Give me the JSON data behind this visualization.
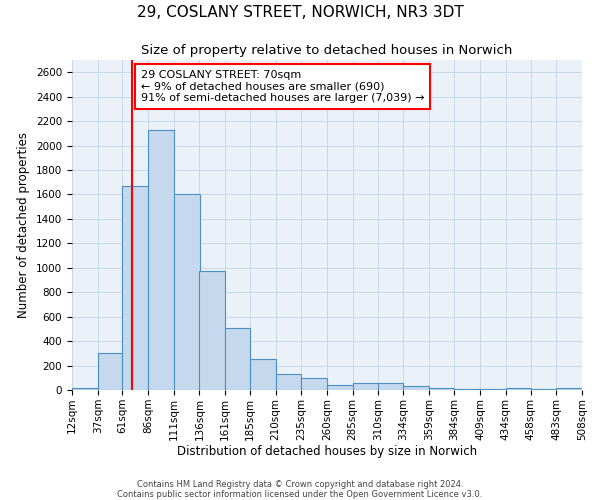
{
  "title": "29, COSLANY STREET, NORWICH, NR3 3DT",
  "subtitle": "Size of property relative to detached houses in Norwich",
  "xlabel": "Distribution of detached houses by size in Norwich",
  "ylabel": "Number of detached properties",
  "bin_edges": [
    12,
    37,
    61,
    86,
    111,
    136,
    161,
    185,
    210,
    235,
    260,
    285,
    310,
    334,
    359,
    384,
    409,
    434,
    458,
    483,
    508
  ],
  "bin_labels": [
    "12sqm",
    "37sqm",
    "61sqm",
    "86sqm",
    "111sqm",
    "136sqm",
    "161sqm",
    "185sqm",
    "210sqm",
    "235sqm",
    "260sqm",
    "285sqm",
    "310sqm",
    "334sqm",
    "359sqm",
    "384sqm",
    "409sqm",
    "434sqm",
    "458sqm",
    "483sqm",
    "508sqm"
  ],
  "bar_heights": [
    20,
    300,
    1670,
    2130,
    1600,
    970,
    510,
    255,
    130,
    100,
    40,
    60,
    55,
    30,
    15,
    10,
    5,
    15,
    5,
    20
  ],
  "bar_color": "#c5d8ed",
  "bar_edge_color": "#4a90c4",
  "vline_x": 70,
  "vline_color": "red",
  "annotation_text": "29 COSLANY STREET: 70sqm\n← 9% of detached houses are smaller (690)\n91% of semi-detached houses are larger (7,039) →",
  "annotation_box_facecolor": "white",
  "annotation_box_edgecolor": "red",
  "ylim": [
    0,
    2700
  ],
  "yticks": [
    0,
    200,
    400,
    600,
    800,
    1000,
    1200,
    1400,
    1600,
    1800,
    2000,
    2200,
    2400,
    2600
  ],
  "grid_color": "#c8d8e8",
  "bg_color": "#eaf1f8",
  "footer1": "Contains HM Land Registry data © Crown copyright and database right 2024.",
  "footer2": "Contains public sector information licensed under the Open Government Licence v3.0.",
  "title_fontsize": 11,
  "subtitle_fontsize": 9.5,
  "label_fontsize": 8.5,
  "tick_fontsize": 7.5,
  "annot_fontsize": 8
}
